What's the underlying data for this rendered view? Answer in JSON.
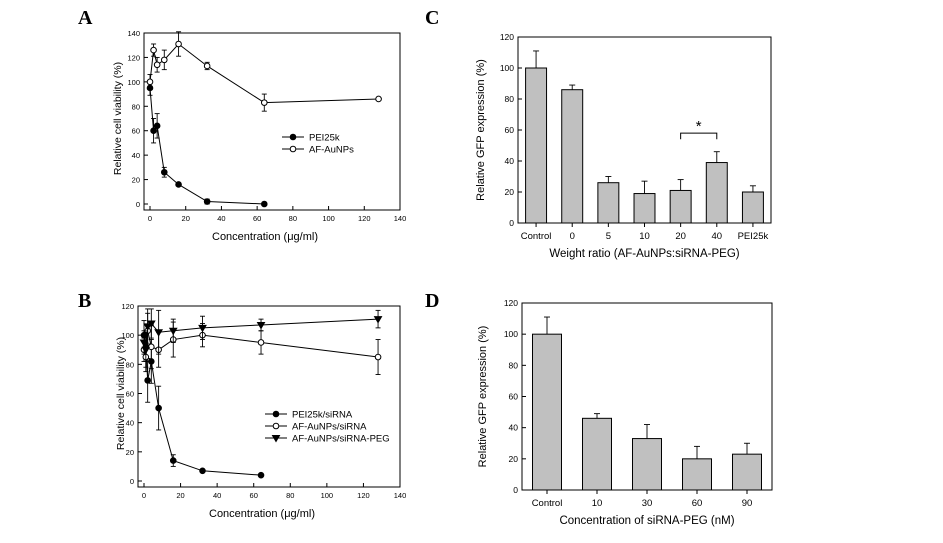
{
  "chart_data": [
    {
      "panel": "A",
      "type": "line",
      "title": "",
      "xlabel": "Concentration (μg/ml)",
      "ylabel": "Relative cell viability (%)",
      "xlim": [
        0,
        140
      ],
      "ylim": [
        0,
        140
      ],
      "xticks": [
        "0",
        "20",
        "40",
        "60",
        "80",
        "100",
        "120",
        "140"
      ],
      "yticks": [
        "0",
        "20",
        "40",
        "60",
        "80",
        "100",
        "120",
        "140"
      ],
      "legend_position": "center-right",
      "series": [
        {
          "name": "PEI25k",
          "marker": "filled-circle",
          "x": [
            0,
            2,
            4,
            8,
            16,
            32,
            64
          ],
          "y": [
            95,
            60,
            64,
            26,
            16,
            2,
            0
          ],
          "err": [
            6,
            10,
            10,
            4,
            1,
            2,
            0
          ]
        },
        {
          "name": "AF-AuNPs",
          "marker": "open-circle",
          "x": [
            0,
            2,
            4,
            8,
            16,
            32,
            64,
            128
          ],
          "y": [
            100,
            126,
            114,
            118,
            131,
            113,
            83,
            86
          ],
          "err": [
            6,
            5,
            6,
            8,
            10,
            3,
            7,
            0
          ]
        }
      ]
    },
    {
      "panel": "B",
      "type": "line",
      "title": "",
      "xlabel": "Concentration (μg/ml)",
      "ylabel": "Relative cell viability (%)",
      "xlim": [
        0,
        140
      ],
      "ylim": [
        0,
        120
      ],
      "xticks": [
        "0",
        "20",
        "40",
        "60",
        "80",
        "100",
        "120",
        "140"
      ],
      "yticks": [
        "0",
        "20",
        "40",
        "60",
        "80",
        "100",
        "120"
      ],
      "legend_position": "center-right",
      "series": [
        {
          "name": "PEI25k/siRNA",
          "marker": "filled-circle",
          "x": [
            0,
            1,
            2,
            4,
            8,
            16,
            32,
            64
          ],
          "y": [
            100,
            92,
            69,
            82,
            50,
            14,
            7,
            4
          ],
          "err": [
            10,
            10,
            15,
            15,
            15,
            4,
            1,
            0
          ]
        },
        {
          "name": "AF-AuNPs/siRNA",
          "marker": "open-circle",
          "x": [
            0,
            1,
            2,
            4,
            8,
            16,
            32,
            64,
            128
          ],
          "y": [
            90,
            85,
            103,
            92,
            90,
            97,
            100,
            95,
            85
          ],
          "err": [
            8,
            10,
            12,
            15,
            12,
            12,
            8,
            8,
            12
          ]
        },
        {
          "name": "AF-AuNPs/siRNA-PEG",
          "marker": "filled-triangle",
          "x": [
            0,
            1,
            2,
            4,
            8,
            16,
            32,
            64,
            128
          ],
          "y": [
            95,
            90,
            106,
            108,
            102,
            103,
            105,
            107,
            111
          ],
          "err": [
            8,
            12,
            12,
            10,
            15,
            8,
            8,
            4,
            6
          ]
        }
      ]
    },
    {
      "panel": "C",
      "type": "bar",
      "title": "",
      "xlabel": "Weight ratio (AF-AuNPs:siRNA-PEG)",
      "ylabel": "Relative GFP expression (%)",
      "ylim": [
        0,
        120
      ],
      "yticks": [
        "0",
        "20",
        "40",
        "60",
        "80",
        "100",
        "120"
      ],
      "categories": [
        "Control",
        "0",
        "5",
        "10",
        "20",
        "40",
        "PEI25k"
      ],
      "values": [
        100,
        86,
        26,
        19,
        21,
        39,
        20
      ],
      "errors": [
        11,
        3,
        4,
        8,
        7,
        7,
        4
      ],
      "annotation": "*"
    },
    {
      "panel": "D",
      "type": "bar",
      "title": "",
      "xlabel": "Concentration of siRNA-PEG (nM)",
      "ylabel": "Relative GFP expression (%)",
      "ylim": [
        0,
        120
      ],
      "yticks": [
        "0",
        "20",
        "40",
        "60",
        "80",
        "100",
        "120"
      ],
      "categories": [
        "Control",
        "10",
        "30",
        "60",
        "90"
      ],
      "values": [
        100,
        46,
        33,
        20,
        23
      ],
      "errors": [
        11,
        3,
        9,
        8,
        7
      ]
    }
  ],
  "panel_labels": {
    "a": "A",
    "b": "B",
    "c": "C",
    "d": "D"
  }
}
